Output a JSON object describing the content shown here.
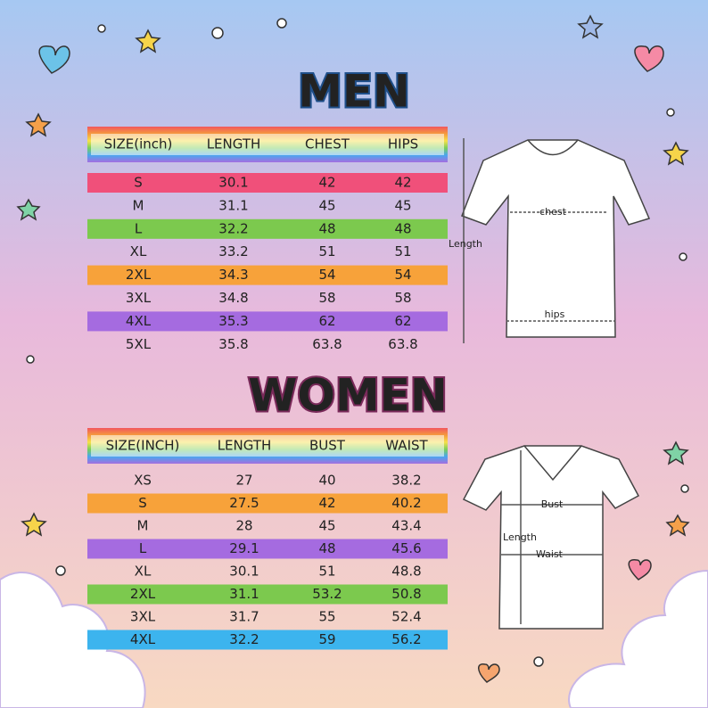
{
  "men": {
    "title": "MEN",
    "headers": [
      "SIZE(inch)",
      "LENGTH",
      "CHEST",
      "HIPS"
    ],
    "rows": [
      [
        "S",
        "30.1",
        "42",
        "42"
      ],
      [
        "M",
        "31.1",
        "45",
        "45"
      ],
      [
        "L",
        "32.2",
        "48",
        "48"
      ],
      [
        "XL",
        "33.2",
        "51",
        "51"
      ],
      [
        "2XL",
        "34.3",
        "54",
        "54"
      ],
      [
        "3XL",
        "34.8",
        "58",
        "58"
      ],
      [
        "4XL",
        "35.3",
        "62",
        "62"
      ],
      [
        "5XL",
        "35.8",
        "63.8",
        "63.8"
      ]
    ],
    "diagram": {
      "chest": "chest",
      "hips": "hips",
      "length": "Length"
    }
  },
  "women": {
    "title": "WOMEN",
    "headers": [
      "SIZE(INCH)",
      "LENGTH",
      "BUST",
      "WAIST"
    ],
    "rows": [
      [
        "XS",
        "27",
        "40",
        "38.2"
      ],
      [
        "S",
        "27.5",
        "42",
        "40.2"
      ],
      [
        "M",
        "28",
        "45",
        "43.4"
      ],
      [
        "L",
        "29.1",
        "48",
        "45.6"
      ],
      [
        "XL",
        "30.1",
        "51",
        "48.8"
      ],
      [
        "2XL",
        "31.1",
        "53.2",
        "50.8"
      ],
      [
        "3XL",
        "31.7",
        "55",
        "52.4"
      ],
      [
        "4XL",
        "32.2",
        "59",
        "56.2"
      ]
    ],
    "diagram": {
      "bust": "Bust",
      "length": "Length",
      "waist": "Waist"
    }
  }
}
